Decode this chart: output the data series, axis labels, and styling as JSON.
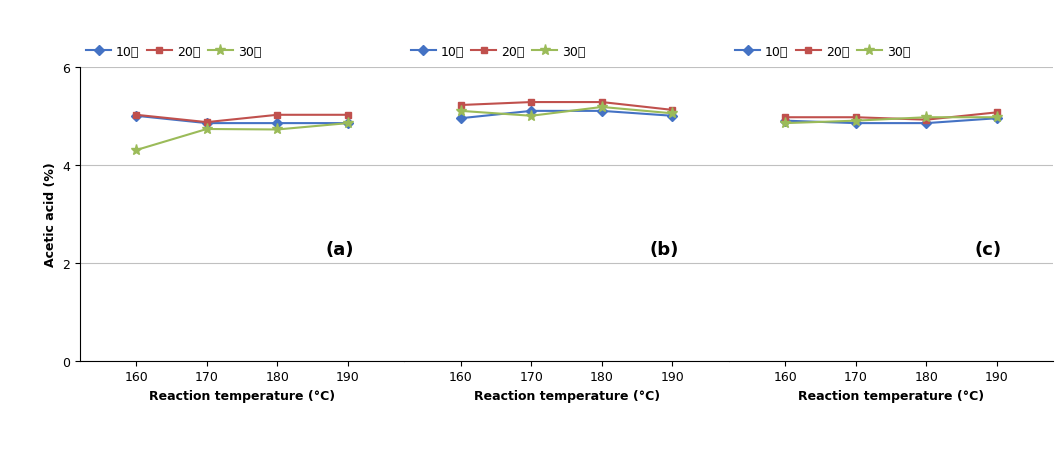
{
  "x": [
    160,
    170,
    180,
    190
  ],
  "panels": [
    {
      "label": "(a)",
      "series": {
        "10분": [
          5.0,
          4.85,
          4.85,
          4.85
        ],
        "20분": [
          5.02,
          4.87,
          5.02,
          5.02
        ],
        "30분": [
          4.3,
          4.73,
          4.72,
          4.85
        ]
      }
    },
    {
      "label": "(b)",
      "series": {
        "10분": [
          4.95,
          5.1,
          5.1,
          5.0
        ],
        "20분": [
          5.22,
          5.28,
          5.28,
          5.12
        ],
        "30분": [
          5.1,
          5.0,
          5.18,
          5.05
        ]
      }
    },
    {
      "label": "(c)",
      "series": {
        "10분": [
          4.9,
          4.85,
          4.85,
          4.95
        ],
        "20분": [
          4.97,
          4.97,
          4.92,
          5.07
        ],
        "30분": [
          4.85,
          4.9,
          4.97,
          4.97
        ]
      }
    }
  ],
  "series_styles": {
    "10분": {
      "color": "#4472C4",
      "marker": "D",
      "markersize": 5
    },
    "20분": {
      "color": "#C0504D",
      "marker": "s",
      "markersize": 5
    },
    "30분": {
      "color": "#9BBB59",
      "marker": "*",
      "markersize": 8
    }
  },
  "ylim": [
    0,
    6
  ],
  "yticks": [
    0,
    2,
    4,
    6
  ],
  "xlabel": "Reaction temperature (°C)",
  "ylabel": "Acetic acid (%)",
  "xticks": [
    160,
    170,
    180,
    190
  ],
  "legend_labels": [
    "10분",
    "20분",
    "30분"
  ],
  "background_color": "#ffffff",
  "grid_color": "#C0C0C0"
}
